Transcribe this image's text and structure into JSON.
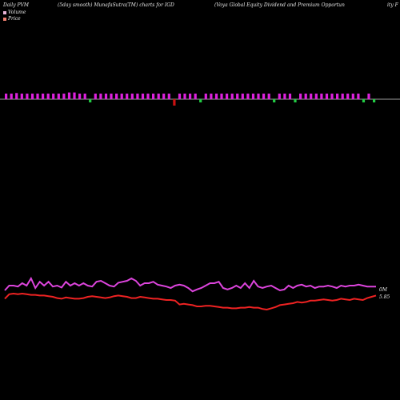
{
  "header": {
    "left": "Daily PVM",
    "middle": "(5day smooth) MunafaSutra(TM) charts for IGD",
    "right": "(Voya Global Equity Dividend and Premium Opportun",
    "far_right": "ity F"
  },
  "legend": {
    "volume_label": "Volume",
    "price_label": "Price",
    "volume_color": "#e8b4d8",
    "price_color": "#f08070"
  },
  "chart_data": {
    "type": "line",
    "volume_bars": {
      "up_color": "#dd22dd",
      "down_color": "#22cc44",
      "drop_color": "#cc1111",
      "bars": [
        {
          "dir": "up",
          "v": 1.0
        },
        {
          "dir": "up",
          "v": 1.0
        },
        {
          "dir": "up",
          "v": 1.1
        },
        {
          "dir": "up",
          "v": 1.0
        },
        {
          "dir": "up",
          "v": 1.0
        },
        {
          "dir": "up",
          "v": 1.0
        },
        {
          "dir": "up",
          "v": 1.0
        },
        {
          "dir": "up",
          "v": 1.0
        },
        {
          "dir": "up",
          "v": 1.0
        },
        {
          "dir": "up",
          "v": 1.0
        },
        {
          "dir": "up",
          "v": 1.0
        },
        {
          "dir": "up",
          "v": 1.0
        },
        {
          "dir": "up",
          "v": 1.2
        },
        {
          "dir": "up",
          "v": 1.2
        },
        {
          "dir": "up",
          "v": 1.0
        },
        {
          "dir": "up",
          "v": 1.0
        },
        {
          "dir": "down",
          "v": 1.0
        },
        {
          "dir": "up",
          "v": 1.0
        },
        {
          "dir": "up",
          "v": 1.0
        },
        {
          "dir": "up",
          "v": 1.0
        },
        {
          "dir": "up",
          "v": 1.0
        },
        {
          "dir": "up",
          "v": 1.0
        },
        {
          "dir": "up",
          "v": 1.0
        },
        {
          "dir": "up",
          "v": 1.0
        },
        {
          "dir": "up",
          "v": 1.0
        },
        {
          "dir": "up",
          "v": 1.0
        },
        {
          "dir": "up",
          "v": 1.0
        },
        {
          "dir": "up",
          "v": 1.0
        },
        {
          "dir": "up",
          "v": 1.0
        },
        {
          "dir": "up",
          "v": 1.0
        },
        {
          "dir": "up",
          "v": 1.0
        },
        {
          "dir": "up",
          "v": 1.0
        },
        {
          "dir": "drop",
          "v": 1.6
        },
        {
          "dir": "up",
          "v": 1.0
        },
        {
          "dir": "up",
          "v": 1.0
        },
        {
          "dir": "up",
          "v": 1.0
        },
        {
          "dir": "up",
          "v": 1.0
        },
        {
          "dir": "down",
          "v": 1.0
        },
        {
          "dir": "up",
          "v": 1.0
        },
        {
          "dir": "up",
          "v": 1.0
        },
        {
          "dir": "up",
          "v": 1.0
        },
        {
          "dir": "up",
          "v": 1.0
        },
        {
          "dir": "up",
          "v": 1.0
        },
        {
          "dir": "up",
          "v": 1.0
        },
        {
          "dir": "up",
          "v": 1.0
        },
        {
          "dir": "up",
          "v": 1.0
        },
        {
          "dir": "up",
          "v": 1.0
        },
        {
          "dir": "up",
          "v": 1.0
        },
        {
          "dir": "up",
          "v": 1.0
        },
        {
          "dir": "up",
          "v": 1.0
        },
        {
          "dir": "up",
          "v": 1.0
        },
        {
          "dir": "down",
          "v": 1.0
        },
        {
          "dir": "up",
          "v": 1.0
        },
        {
          "dir": "up",
          "v": 1.0
        },
        {
          "dir": "up",
          "v": 1.0
        },
        {
          "dir": "down",
          "v": 1.0
        },
        {
          "dir": "up",
          "v": 1.0
        },
        {
          "dir": "up",
          "v": 1.0
        },
        {
          "dir": "up",
          "v": 1.0
        },
        {
          "dir": "up",
          "v": 1.0
        },
        {
          "dir": "up",
          "v": 1.0
        },
        {
          "dir": "up",
          "v": 1.0
        },
        {
          "dir": "up",
          "v": 1.0
        },
        {
          "dir": "up",
          "v": 1.0
        },
        {
          "dir": "up",
          "v": 1.0
        },
        {
          "dir": "up",
          "v": 1.0
        },
        {
          "dir": "up",
          "v": 1.0
        },
        {
          "dir": "up",
          "v": 1.0
        },
        {
          "dir": "down",
          "v": 1.0
        },
        {
          "dir": "up",
          "v": 1.0
        },
        {
          "dir": "down",
          "v": 1.0
        }
      ]
    },
    "series": [
      {
        "color": "#dd44dd",
        "values": [
          20,
          30,
          30,
          28,
          35,
          30,
          45,
          25,
          38,
          30,
          38,
          28,
          30,
          26,
          38,
          30,
          35,
          30,
          35,
          30,
          28,
          38,
          40,
          35,
          30,
          28,
          36,
          38,
          40,
          45,
          40,
          30,
          35,
          35,
          38,
          32,
          30,
          28,
          25,
          30,
          32,
          30,
          25,
          18,
          22,
          25,
          30,
          35,
          35,
          38,
          25,
          22,
          25,
          30,
          25,
          35,
          25,
          40,
          28,
          25,
          28,
          30,
          25,
          20,
          22,
          30,
          25,
          30,
          32,
          28,
          30,
          25,
          28,
          28,
          30,
          28,
          25,
          30,
          28,
          30,
          30,
          32,
          30,
          28,
          28,
          28
        ]
      },
      {
        "color": "#ee2222",
        "end_label": "5.85",
        "values": [
          5.845,
          5.852,
          5.853,
          5.852,
          5.853,
          5.852,
          5.851,
          5.851,
          5.85,
          5.85,
          5.849,
          5.848,
          5.846,
          5.845,
          5.847,
          5.846,
          5.845,
          5.845,
          5.846,
          5.848,
          5.849,
          5.848,
          5.847,
          5.846,
          5.847,
          5.849,
          5.85,
          5.849,
          5.848,
          5.846,
          5.846,
          5.848,
          5.847,
          5.846,
          5.845,
          5.845,
          5.844,
          5.843,
          5.843,
          5.842,
          5.836,
          5.837,
          5.836,
          5.835,
          5.833,
          5.833,
          5.834,
          5.834,
          5.833,
          5.832,
          5.831,
          5.831,
          5.83,
          5.83,
          5.831,
          5.831,
          5.832,
          5.831,
          5.831,
          5.829,
          5.828,
          5.83,
          5.832,
          5.835,
          5.836,
          5.837,
          5.838,
          5.84,
          5.839,
          5.84,
          5.842,
          5.842,
          5.843,
          5.844,
          5.843,
          5.842,
          5.843,
          5.845,
          5.844,
          5.843,
          5.845,
          5.844,
          5.843,
          5.846,
          5.848,
          5.85
        ]
      }
    ],
    "volume_line_label": "0M"
  }
}
